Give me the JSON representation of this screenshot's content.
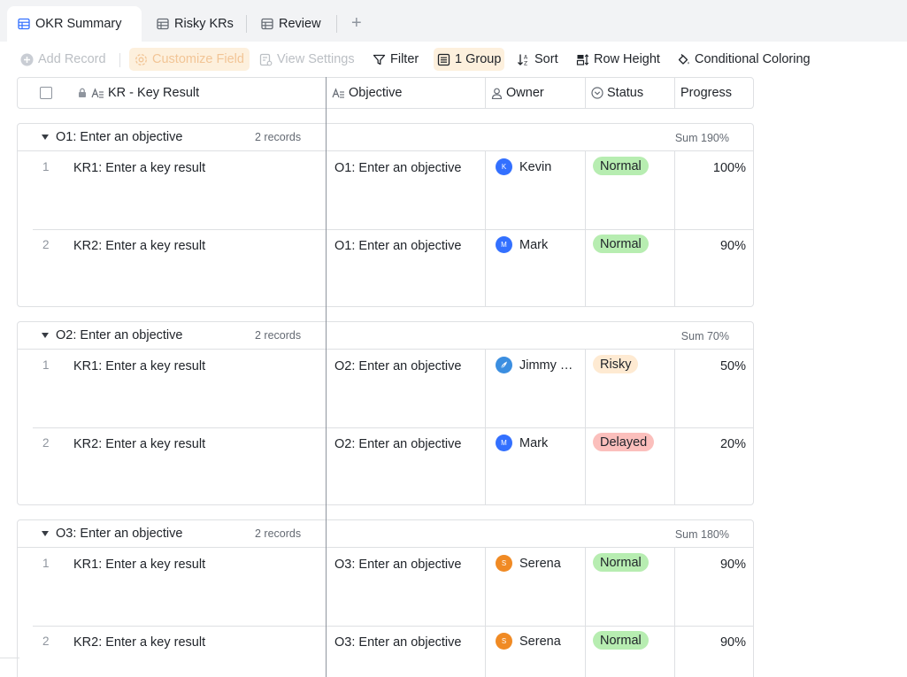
{
  "tabs": [
    {
      "label": "OKR Summary",
      "icon": "table-icon",
      "active": true
    },
    {
      "label": "Risky KRs",
      "icon": "table-icon",
      "active": false
    },
    {
      "label": "Review",
      "icon": "table-icon",
      "active": false
    }
  ],
  "add_tab_glyph": "+",
  "toolbar": {
    "add_record": "Add Record",
    "customize_field": "Customize Field",
    "view_settings": "View Settings",
    "filter": "Filter",
    "group": "1 Group",
    "sort": "Sort",
    "row_height": "Row Height",
    "conditional_coloring": "Conditional Coloring"
  },
  "columns": {
    "kr": "KR - Key Result",
    "objective": "Objective",
    "owner": "Owner",
    "status": "Status",
    "progress": "Progress"
  },
  "colors": {
    "accent": "#3370ff",
    "normal_bg": "#b7edb1",
    "risky_bg": "#feead2",
    "delayed_bg": "#fbbfbc",
    "highlight_bg": "#fdf0dd"
  },
  "groups": [
    {
      "title": "O1: Enter an objective",
      "count": "2 records",
      "sum": "Sum 190%",
      "rows": [
        {
          "num": "1",
          "kr": "KR1: Enter a key result",
          "objective": "O1: Enter an objective",
          "owner": "Kevin",
          "avatar": "K",
          "status": "Normal",
          "progress": "100%"
        },
        {
          "num": "2",
          "kr": "KR2: Enter a key result",
          "objective": "O1: Enter an objective",
          "owner": "Mark",
          "avatar": "M",
          "status": "Normal",
          "progress": "90%"
        }
      ]
    },
    {
      "title": "O2: Enter an objective",
      "count": "2 records",
      "sum": "Sum 70%",
      "rows": [
        {
          "num": "1",
          "kr": "KR1: Enter a key result",
          "objective": "O2: Enter an objective",
          "owner": "Jimmy W...",
          "avatar": "",
          "status": "Risky",
          "progress": "50%"
        },
        {
          "num": "2",
          "kr": "KR2: Enter a key result",
          "objective": "O2: Enter an objective",
          "owner": "Mark",
          "avatar": "M",
          "status": "Delayed",
          "progress": "20%"
        }
      ]
    },
    {
      "title": "O3: Enter an objective",
      "count": "2 records",
      "sum": "Sum 180%",
      "rows": [
        {
          "num": "1",
          "kr": "KR1: Enter a key result",
          "objective": "O3: Enter an objective",
          "owner": "Serena",
          "avatar": "S",
          "status": "Normal",
          "progress": "90%"
        },
        {
          "num": "2",
          "kr": "KR2: Enter a key result",
          "objective": "O3: Enter an objective",
          "owner": "Serena",
          "avatar": "S",
          "status": "Normal",
          "progress": "90%"
        }
      ]
    }
  ]
}
